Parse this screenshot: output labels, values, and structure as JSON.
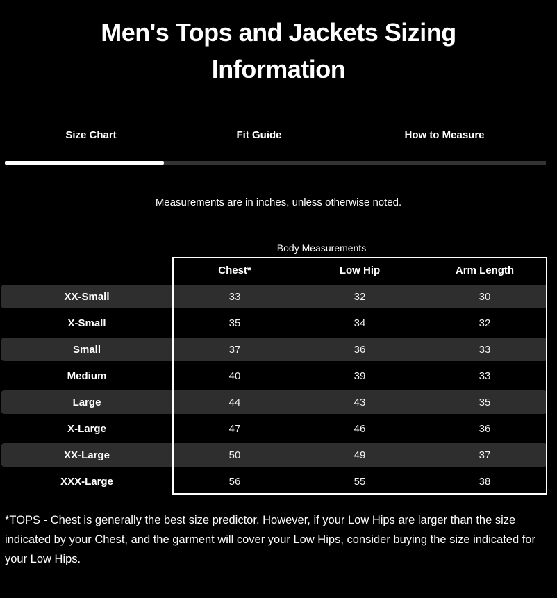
{
  "page": {
    "title": "Men's Tops and Jackets Sizing Information"
  },
  "tabs": [
    {
      "label": "Size Chart",
      "active": true
    },
    {
      "label": "Fit Guide",
      "active": false
    },
    {
      "label": "How to Measure",
      "active": false
    }
  ],
  "note": "Measurements are in inches, unless otherwise noted.",
  "table": {
    "caption": "Body Measurements",
    "headers": [
      "Chest*",
      "Low Hip",
      "Arm Length"
    ],
    "rows": [
      {
        "label": "XX-Small",
        "values": [
          "33",
          "32",
          "30"
        ]
      },
      {
        "label": "X-Small",
        "values": [
          "35",
          "34",
          "32"
        ]
      },
      {
        "label": "Small",
        "values": [
          "37",
          "36",
          "33"
        ]
      },
      {
        "label": "Medium",
        "values": [
          "40",
          "39",
          "33"
        ]
      },
      {
        "label": "Large",
        "values": [
          "44",
          "43",
          "35"
        ]
      },
      {
        "label": "X-Large",
        "values": [
          "47",
          "46",
          "36"
        ]
      },
      {
        "label": "XX-Large",
        "values": [
          "50",
          "49",
          "37"
        ]
      },
      {
        "label": "XXX-Large",
        "values": [
          "56",
          "55",
          "38"
        ]
      }
    ]
  },
  "footnote": "*TOPS - Chest is generally the best size predictor. However, if your Low Hips are larger than the size indicated by your Chest, and the garment will cover your Low Hips, consider buying the size indicated for your Low Hips.",
  "colors": {
    "background": "#000000",
    "text": "#ffffff",
    "stripe": "#2e2e2e",
    "track": "#333333",
    "active_indicator": "#ffffff",
    "border": "#ffffff"
  }
}
